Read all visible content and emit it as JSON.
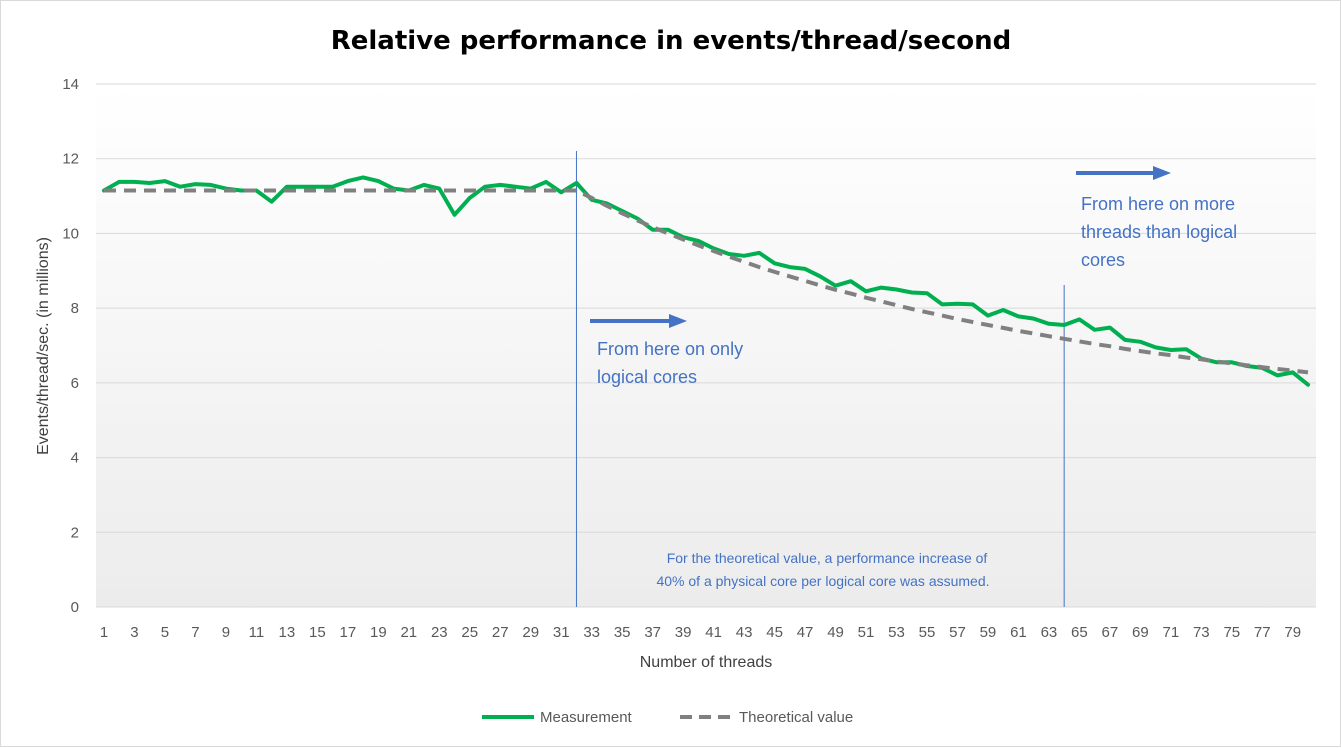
{
  "chart_data": {
    "type": "line",
    "title": "Relative performance in events/thread/second",
    "xlabel": "Number of threads",
    "ylabel": "Events/thread/sec. (in millions)",
    "ylim": [
      0,
      14
    ],
    "yticks": [
      0,
      2,
      4,
      6,
      8,
      10,
      12,
      14
    ],
    "xlim": [
      1,
      80
    ],
    "xtick_labels": [
      "1",
      "3",
      "5",
      "7",
      "9",
      "11",
      "13",
      "15",
      "17",
      "19",
      "21",
      "23",
      "25",
      "27",
      "29",
      "31",
      "33",
      "35",
      "37",
      "39",
      "41",
      "43",
      "45",
      "47",
      "49",
      "51",
      "53",
      "55",
      "57",
      "59",
      "61",
      "63",
      "65",
      "67",
      "69",
      "71",
      "73",
      "75",
      "77",
      "79"
    ],
    "grid": "horizontal",
    "legend": "bottom",
    "x": [
      1,
      2,
      3,
      4,
      5,
      6,
      7,
      8,
      9,
      10,
      11,
      12,
      13,
      14,
      15,
      16,
      17,
      18,
      19,
      20,
      21,
      22,
      23,
      24,
      25,
      26,
      27,
      28,
      29,
      30,
      31,
      32,
      33,
      34,
      35,
      36,
      37,
      38,
      39,
      40,
      41,
      42,
      43,
      44,
      45,
      46,
      47,
      48,
      49,
      50,
      51,
      52,
      53,
      54,
      55,
      56,
      57,
      58,
      59,
      60,
      61,
      62,
      63,
      64,
      65,
      66,
      67,
      68,
      69,
      70,
      71,
      72,
      73,
      74,
      75,
      76,
      77,
      78,
      79,
      80
    ],
    "series": [
      {
        "name": "Measurement",
        "color": "#00b050",
        "style": "solid",
        "values": [
          11.15,
          11.38,
          11.38,
          11.35,
          11.4,
          11.25,
          11.32,
          11.3,
          11.2,
          11.15,
          11.15,
          10.85,
          11.25,
          11.25,
          11.25,
          11.25,
          11.4,
          11.5,
          11.4,
          11.2,
          11.15,
          11.3,
          11.2,
          10.5,
          10.95,
          11.25,
          11.3,
          11.25,
          11.2,
          11.38,
          11.1,
          11.35,
          10.9,
          10.8,
          10.6,
          10.4,
          10.1,
          10.1,
          9.9,
          9.8,
          9.6,
          9.45,
          9.4,
          9.48,
          9.2,
          9.1,
          9.05,
          8.85,
          8.6,
          8.72,
          8.45,
          8.55,
          8.5,
          8.42,
          8.4,
          8.1,
          8.12,
          8.1,
          7.8,
          7.95,
          7.78,
          7.72,
          7.58,
          7.55,
          7.7,
          7.42,
          7.48,
          7.15,
          7.1,
          6.95,
          6.88,
          6.9,
          6.65,
          6.55,
          6.55,
          6.45,
          6.4,
          6.2,
          6.28,
          5.95
        ]
      },
      {
        "name": "Theoretical value",
        "color": "#808080",
        "style": "dashed",
        "values": [
          11.15,
          11.15,
          11.15,
          11.15,
          11.15,
          11.15,
          11.15,
          11.15,
          11.15,
          11.15,
          11.15,
          11.15,
          11.15,
          11.15,
          11.15,
          11.15,
          11.15,
          11.15,
          11.15,
          11.15,
          11.15,
          11.15,
          11.15,
          11.15,
          11.15,
          11.15,
          11.15,
          11.15,
          11.15,
          11.15,
          11.15,
          11.15,
          10.95,
          10.74,
          10.54,
          10.35,
          10.17,
          10.0,
          9.84,
          9.68,
          9.53,
          9.38,
          9.24,
          9.1,
          8.97,
          8.85,
          8.73,
          8.61,
          8.49,
          8.39,
          8.28,
          8.18,
          8.08,
          7.98,
          7.89,
          7.8,
          7.71,
          7.63,
          7.55,
          7.47,
          7.39,
          7.32,
          7.25,
          7.18,
          7.11,
          7.04,
          6.98,
          6.91,
          6.85,
          6.79,
          6.74,
          6.68,
          6.63,
          6.57,
          6.52,
          6.47,
          6.42,
          6.37,
          6.33,
          6.28
        ]
      }
    ],
    "vertical_markers": [
      32,
      64
    ],
    "annotations": {
      "logical_cores": [
        "From here on only",
        "logical cores"
      ],
      "more_threads": [
        "From here on more",
        "threads than logical",
        "cores"
      ],
      "note": [
        "For the theoretical value, a performance increase of",
        "40% of a physical core per logical core was assumed."
      ]
    },
    "colors": {
      "annotation": "#4472c4",
      "gridline": "#d9d9d9",
      "plot_gradient_top": "#ffffff",
      "plot_gradient_bottom": "#ececec"
    }
  }
}
